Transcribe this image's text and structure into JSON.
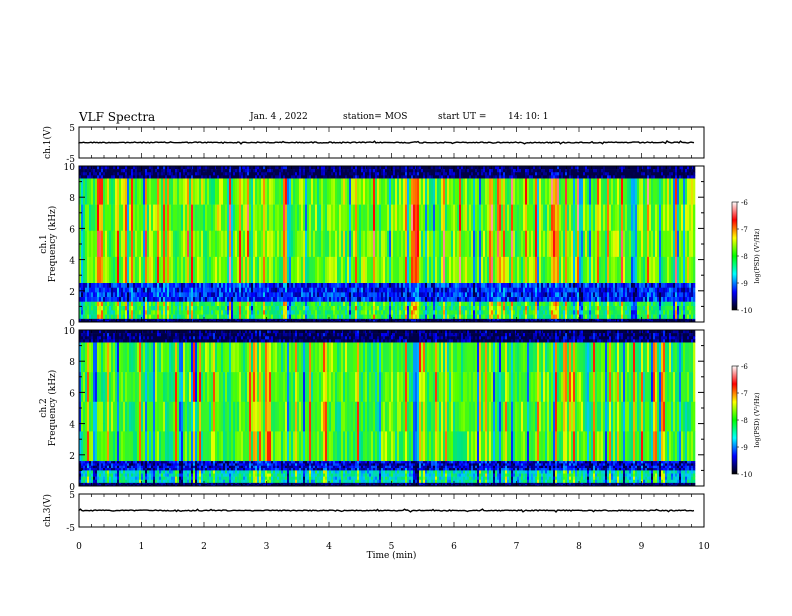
{
  "header": {
    "title": "VLF Spectra",
    "date": "Jan. 4 , 2022",
    "station": "station= MOS",
    "start_label": "start UT =",
    "start_value": "14: 10: 1"
  },
  "colorbar": {
    "label": "log(PSD) (V²/Hz)",
    "ticks": [
      "-6",
      "-7",
      "-8",
      "-9",
      "-10"
    ],
    "colors": [
      "#ffffff",
      "#ff0000",
      "#ffff00",
      "#00ff00",
      "#00ffff",
      "#0000ff",
      "#000000"
    ]
  },
  "chart_data": {
    "type": "heatmap",
    "xlabel": "Time (min)",
    "xlim": [
      0,
      10
    ],
    "x_ticks": [
      "0",
      "1",
      "2",
      "3",
      "4",
      "5",
      "6",
      "7",
      "8",
      "9",
      "10"
    ],
    "data_end_min": 9.85,
    "waveforms": [
      {
        "name": "ch.1(V)",
        "ylim": [
          -5,
          5
        ],
        "y_ticks": [
          "5",
          "-5"
        ],
        "baseline": 0
      },
      {
        "name": "ch.3(V)",
        "ylim": [
          -5,
          5
        ],
        "y_ticks": [
          "5",
          "-5"
        ],
        "baseline": 0
      }
    ],
    "spectrograms": [
      {
        "channel": "ch.1",
        "ylabel": "Frequency (kHz)",
        "ylim": [
          0,
          10
        ],
        "y_ticks": [
          "0",
          "2",
          "4",
          "6",
          "8",
          "10"
        ],
        "zlim": [
          -10,
          -6
        ],
        "bands": [
          {
            "f_low": 9.2,
            "f_high": 10,
            "level": -10
          },
          {
            "f_low": 2.5,
            "f_high": 9.2,
            "level": -7.6
          },
          {
            "f_low": 1.3,
            "f_high": 2.5,
            "level": -9.4
          },
          {
            "f_low": 0.2,
            "f_high": 1.3,
            "level": -8.0
          },
          {
            "f_low": 0,
            "f_high": 0.2,
            "level": -10
          }
        ]
      },
      {
        "channel": "ch.2",
        "ylabel": "Frequency (kHz)",
        "ylim": [
          0,
          10
        ],
        "y_ticks": [
          "0",
          "2",
          "4",
          "6",
          "8",
          "10"
        ],
        "zlim": [
          -10,
          -6
        ],
        "bands": [
          {
            "f_low": 9.2,
            "f_high": 10,
            "level": -10
          },
          {
            "f_low": 1.6,
            "f_high": 9.2,
            "level": -7.8
          },
          {
            "f_low": 1.0,
            "f_high": 1.6,
            "level": -9.6
          },
          {
            "f_low": 0.2,
            "f_high": 1.0,
            "level": -8.5
          },
          {
            "f_low": 0,
            "f_high": 0.2,
            "level": -10
          }
        ]
      }
    ]
  }
}
